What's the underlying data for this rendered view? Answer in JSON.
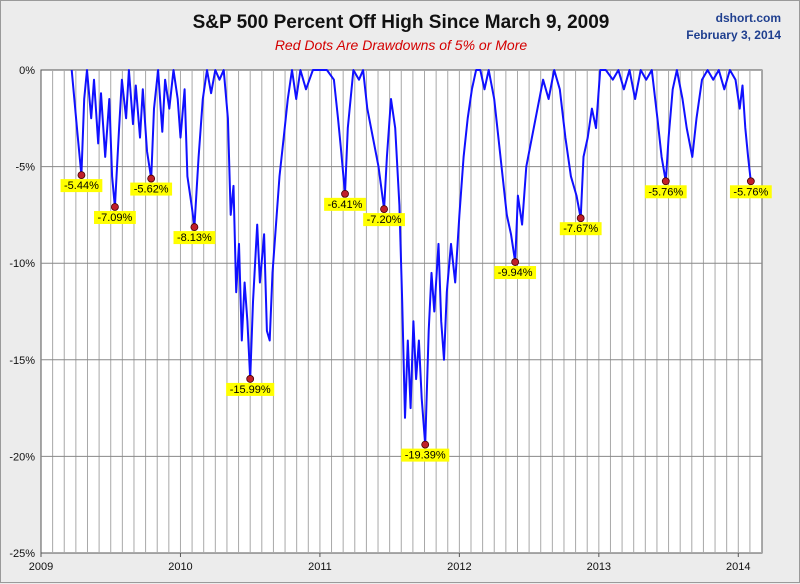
{
  "source": "dshort.com",
  "date": "February 3, 2014",
  "chart_data": {
    "type": "line",
    "title": "S&P 500 Percent Off High Since March 9, 2009",
    "subtitle": "Red Dots Are Drawdowns of 5% or More",
    "xlabel": "",
    "ylabel": "",
    "x_ticks": [
      "2009",
      "2010",
      "2011",
      "2012",
      "2013",
      "2014"
    ],
    "y_ticks": [
      "0%",
      "-5%",
      "-10%",
      "-15%",
      "-20%",
      "-25%"
    ],
    "xlim": [
      2009.0,
      2014.17
    ],
    "ylim": [
      -25,
      0
    ],
    "grid": true,
    "colors": {
      "line": "#1010ff",
      "dot": "#c0202a",
      "label_bg": "#ffff00",
      "plot_bg": "#ffffff",
      "grid": "#a8a8a8"
    },
    "series": [
      {
        "values": [
          [
            2009.22,
            0
          ],
          [
            2009.26,
            -3.2
          ],
          [
            2009.29,
            -5.44
          ],
          [
            2009.31,
            -1.5
          ],
          [
            2009.33,
            0
          ],
          [
            2009.36,
            -2.5
          ],
          [
            2009.38,
            -0.5
          ],
          [
            2009.41,
            -3.8
          ],
          [
            2009.43,
            -1.2
          ],
          [
            2009.46,
            -4.5
          ],
          [
            2009.49,
            -1.5
          ],
          [
            2009.51,
            -5.5
          ],
          [
            2009.53,
            -7.09
          ],
          [
            2009.56,
            -3.0
          ],
          [
            2009.58,
            -0.5
          ],
          [
            2009.61,
            -2.5
          ],
          [
            2009.63,
            0
          ],
          [
            2009.66,
            -2.8
          ],
          [
            2009.68,
            -0.8
          ],
          [
            2009.71,
            -3.5
          ],
          [
            2009.73,
            -1.0
          ],
          [
            2009.76,
            -4.2
          ],
          [
            2009.79,
            -5.62
          ],
          [
            2009.81,
            -2.0
          ],
          [
            2009.84,
            0
          ],
          [
            2009.87,
            -3.2
          ],
          [
            2009.89,
            -0.5
          ],
          [
            2009.92,
            -2.0
          ],
          [
            2009.95,
            0
          ],
          [
            2009.98,
            -1.5
          ],
          [
            2010.0,
            -3.5
          ],
          [
            2010.03,
            -1.0
          ],
          [
            2010.05,
            -5.5
          ],
          [
            2010.08,
            -7.0
          ],
          [
            2010.1,
            -8.13
          ],
          [
            2010.13,
            -4.5
          ],
          [
            2010.16,
            -1.5
          ],
          [
            2010.19,
            0
          ],
          [
            2010.22,
            -1.2
          ],
          [
            2010.25,
            0
          ],
          [
            2010.28,
            -0.5
          ],
          [
            2010.31,
            0
          ],
          [
            2010.34,
            -2.5
          ],
          [
            2010.36,
            -7.5
          ],
          [
            2010.38,
            -6.0
          ],
          [
            2010.4,
            -11.5
          ],
          [
            2010.42,
            -9.0
          ],
          [
            2010.44,
            -14.0
          ],
          [
            2010.46,
            -11.0
          ],
          [
            2010.48,
            -13.0
          ],
          [
            2010.5,
            -15.99
          ],
          [
            2010.52,
            -12.0
          ],
          [
            2010.55,
            -8.0
          ],
          [
            2010.57,
            -11.0
          ],
          [
            2010.6,
            -8.5
          ],
          [
            2010.62,
            -13.5
          ],
          [
            2010.64,
            -14.0
          ],
          [
            2010.66,
            -10.5
          ],
          [
            2010.69,
            -7.5
          ],
          [
            2010.71,
            -5.5
          ],
          [
            2010.74,
            -3.5
          ],
          [
            2010.77,
            -1.5
          ],
          [
            2010.8,
            0
          ],
          [
            2010.83,
            -1.5
          ],
          [
            2010.86,
            0
          ],
          [
            2010.9,
            -1.0
          ],
          [
            2010.95,
            0
          ],
          [
            2011.0,
            0
          ],
          [
            2011.05,
            0
          ],
          [
            2011.1,
            -0.5
          ],
          [
            2011.13,
            -2.5
          ],
          [
            2011.15,
            -4.0
          ],
          [
            2011.18,
            -6.41
          ],
          [
            2011.2,
            -3.0
          ],
          [
            2011.24,
            0
          ],
          [
            2011.28,
            -0.5
          ],
          [
            2011.31,
            0
          ],
          [
            2011.34,
            -2.0
          ],
          [
            2011.38,
            -3.5
          ],
          [
            2011.42,
            -5.0
          ],
          [
            2011.46,
            -7.2
          ],
          [
            2011.48,
            -4.5
          ],
          [
            2011.51,
            -1.5
          ],
          [
            2011.54,
            -3.0
          ],
          [
            2011.57,
            -7.0
          ],
          [
            2011.59,
            -12.0
          ],
          [
            2011.61,
            -18.0
          ],
          [
            2011.63,
            -14.0
          ],
          [
            2011.65,
            -17.5
          ],
          [
            2011.67,
            -13.0
          ],
          [
            2011.69,
            -16.0
          ],
          [
            2011.71,
            -14.0
          ],
          [
            2011.73,
            -17.0
          ],
          [
            2011.755,
            -19.39
          ],
          [
            2011.78,
            -13.5
          ],
          [
            2011.8,
            -10.5
          ],
          [
            2011.82,
            -12.5
          ],
          [
            2011.85,
            -9.0
          ],
          [
            2011.87,
            -13.0
          ],
          [
            2011.89,
            -15.0
          ],
          [
            2011.91,
            -11.5
          ],
          [
            2011.94,
            -9.0
          ],
          [
            2011.97,
            -11.0
          ],
          [
            2012.0,
            -7.5
          ],
          [
            2012.03,
            -4.5
          ],
          [
            2012.06,
            -2.5
          ],
          [
            2012.09,
            -1.0
          ],
          [
            2012.12,
            0
          ],
          [
            2012.15,
            0
          ],
          [
            2012.18,
            -1.0
          ],
          [
            2012.21,
            0
          ],
          [
            2012.25,
            -1.5
          ],
          [
            2012.28,
            -3.5
          ],
          [
            2012.31,
            -5.5
          ],
          [
            2012.34,
            -7.5
          ],
          [
            2012.37,
            -8.5
          ],
          [
            2012.4,
            -9.94
          ],
          [
            2012.42,
            -6.5
          ],
          [
            2012.45,
            -8.0
          ],
          [
            2012.48,
            -5.0
          ],
          [
            2012.52,
            -3.5
          ],
          [
            2012.56,
            -2.0
          ],
          [
            2012.6,
            -0.5
          ],
          [
            2012.64,
            -1.5
          ],
          [
            2012.68,
            0
          ],
          [
            2012.72,
            -1.0
          ],
          [
            2012.76,
            -3.5
          ],
          [
            2012.8,
            -5.5
          ],
          [
            2012.84,
            -6.5
          ],
          [
            2012.87,
            -7.67
          ],
          [
            2012.89,
            -4.5
          ],
          [
            2012.92,
            -3.5
          ],
          [
            2012.95,
            -2.0
          ],
          [
            2012.98,
            -3.0
          ],
          [
            2013.01,
            0
          ],
          [
            2013.05,
            0
          ],
          [
            2013.1,
            -0.5
          ],
          [
            2013.14,
            0
          ],
          [
            2013.18,
            -1.0
          ],
          [
            2013.22,
            0
          ],
          [
            2013.26,
            -1.5
          ],
          [
            2013.3,
            0
          ],
          [
            2013.34,
            -0.5
          ],
          [
            2013.38,
            0
          ],
          [
            2013.42,
            -2.5
          ],
          [
            2013.45,
            -4.5
          ],
          [
            2013.48,
            -5.76
          ],
          [
            2013.5,
            -3.5
          ],
          [
            2013.53,
            -1.0
          ],
          [
            2013.56,
            0
          ],
          [
            2013.6,
            -1.5
          ],
          [
            2013.63,
            -3.0
          ],
          [
            2013.67,
            -4.5
          ],
          [
            2013.7,
            -2.5
          ],
          [
            2013.74,
            -0.5
          ],
          [
            2013.78,
            0
          ],
          [
            2013.82,
            -0.5
          ],
          [
            2013.86,
            0
          ],
          [
            2013.9,
            -1.0
          ],
          [
            2013.94,
            0
          ],
          [
            2013.98,
            -0.5
          ],
          [
            2014.01,
            -2.0
          ],
          [
            2014.03,
            -0.8
          ],
          [
            2014.05,
            -3.0
          ],
          [
            2014.07,
            -4.5
          ],
          [
            2014.09,
            -5.76
          ]
        ]
      }
    ],
    "drawdowns": [
      {
        "x": 2009.29,
        "y": -5.44,
        "label": "-5.44%"
      },
      {
        "x": 2009.53,
        "y": -7.09,
        "label": "-7.09%"
      },
      {
        "x": 2009.79,
        "y": -5.62,
        "label": "-5.62%"
      },
      {
        "x": 2010.1,
        "y": -8.13,
        "label": "-8.13%"
      },
      {
        "x": 2010.5,
        "y": -15.99,
        "label": "-15.99%"
      },
      {
        "x": 2011.18,
        "y": -6.41,
        "label": "-6.41%"
      },
      {
        "x": 2011.46,
        "y": -7.2,
        "label": "-7.20%"
      },
      {
        "x": 2011.755,
        "y": -19.39,
        "label": "-19.39%"
      },
      {
        "x": 2012.4,
        "y": -9.94,
        "label": "-9.94%"
      },
      {
        "x": 2012.87,
        "y": -7.67,
        "label": "-7.67%"
      },
      {
        "x": 2013.48,
        "y": -5.76,
        "label": "-5.76%"
      },
      {
        "x": 2014.09,
        "y": -5.76,
        "label": "-5.76%"
      }
    ]
  }
}
